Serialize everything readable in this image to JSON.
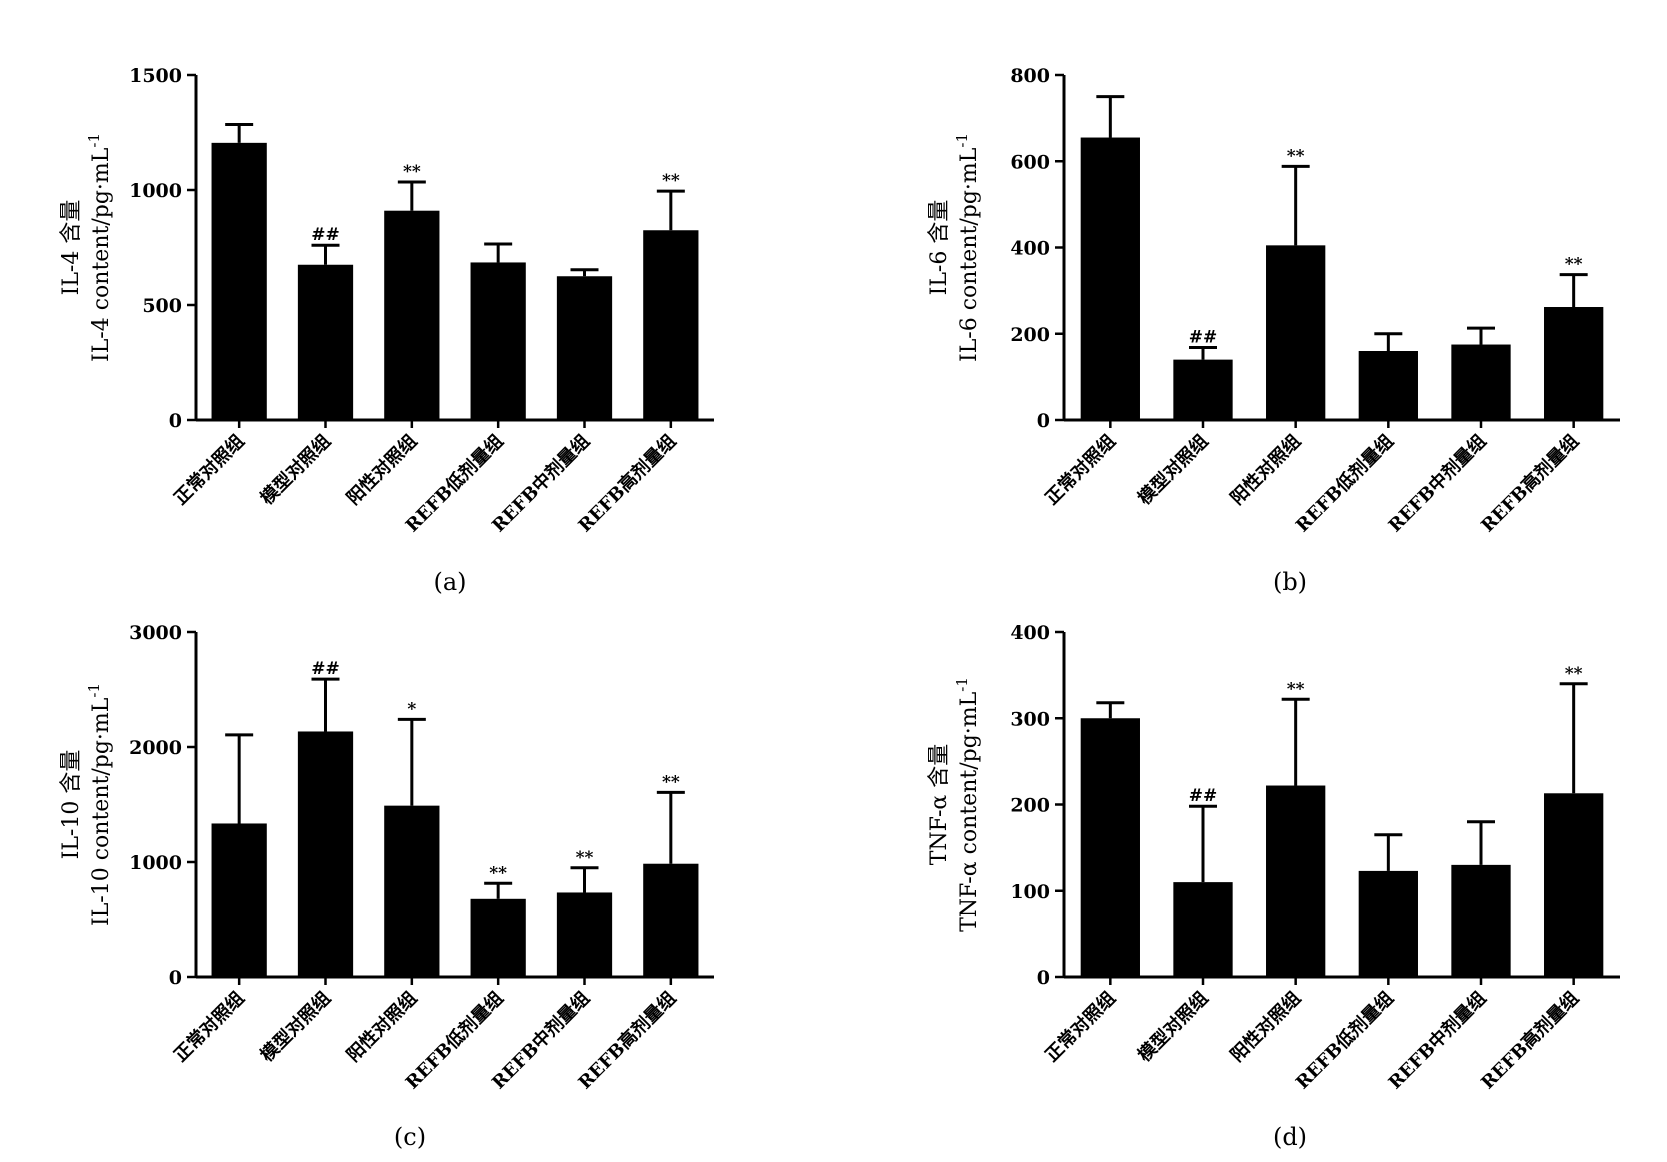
{
  "chart_data": [
    {
      "type": "bar",
      "panel_label": "(a)",
      "ylabel_line1": "IL-4 含量",
      "ylabel_line2": "IL-4  content/pg·mL",
      "ylabel_sup": "-1",
      "categories": [
        "正常对照组",
        "模型对照组",
        "阳性对照组",
        "REFB低剂量组",
        "REFB中剂量组",
        "REFB高剂量组"
      ],
      "values": [
        1205,
        675,
        910,
        685,
        625,
        825
      ],
      "errors": [
        80,
        85,
        125,
        80,
        28,
        170
      ],
      "annotations": [
        "",
        "##",
        "**",
        "",
        "",
        "**"
      ],
      "ylim": [
        0,
        1500
      ],
      "yticks": [
        0,
        500,
        1000,
        1500
      ]
    },
    {
      "type": "bar",
      "panel_label": "(b)",
      "ylabel_line1": "IL-6 含量",
      "ylabel_line2": "IL-6  content/pg·mL",
      "ylabel_sup": "-1",
      "categories": [
        "正常对照组",
        "模型对照组",
        "阳性对照组",
        "REFB低剂量组",
        "REFB中剂量组",
        "REFB高剂量组"
      ],
      "values": [
        655,
        140,
        405,
        160,
        175,
        262
      ],
      "errors": [
        95,
        28,
        183,
        40,
        38,
        75
      ],
      "annotations": [
        "",
        "##",
        "**",
        "",
        "",
        "**"
      ],
      "ylim": [
        0,
        800
      ],
      "yticks": [
        0,
        200,
        400,
        600,
        800
      ]
    },
    {
      "type": "bar",
      "panel_label": "(c)",
      "ylabel_line1": "IL-10 含量",
      "ylabel_line2": "IL-10  content/pg·mL",
      "ylabel_sup": "-1",
      "categories": [
        "正常对照组",
        "模型对照组",
        "阳性对照组",
        "REFB低剂量组",
        "REFB中剂量组",
        "REFB高剂量组"
      ],
      "values": [
        1335,
        2135,
        1490,
        680,
        735,
        985
      ],
      "errors": [
        770,
        455,
        750,
        135,
        215,
        620
      ],
      "annotations": [
        "",
        "##",
        "*",
        "**",
        "**",
        "**"
      ],
      "ylim": [
        0,
        3000
      ],
      "yticks": [
        0,
        1000,
        2000,
        3000
      ]
    },
    {
      "type": "bar",
      "panel_label": "(d)",
      "ylabel_line1": "TNF-α 含量",
      "ylabel_line2": "TNF-α  content/pg·mL",
      "ylabel_sup": "-1",
      "categories": [
        "正常对照组",
        "模型对照组",
        "阳性对照组",
        "REFB低剂量组",
        "REFB中剂量组",
        "REFB高剂量组"
      ],
      "values": [
        300,
        110,
        222,
        123,
        130,
        213
      ],
      "errors": [
        18,
        88,
        100,
        42,
        50,
        127
      ],
      "annotations": [
        "",
        "##",
        "**",
        "",
        "",
        "**"
      ],
      "ylim": [
        0,
        400
      ],
      "yticks": [
        0,
        100,
        200,
        300,
        400
      ]
    }
  ]
}
